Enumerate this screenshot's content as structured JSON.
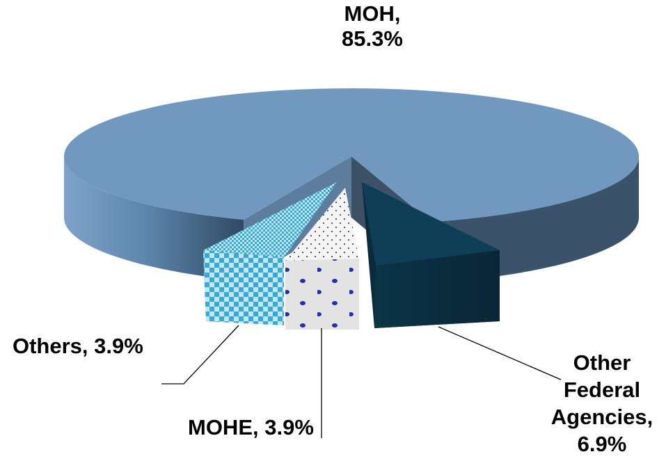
{
  "chart_data": {
    "type": "pie",
    "style": "3d-exploded",
    "title": "",
    "slices": [
      {
        "label": "MOH",
        "value": 85.3,
        "display": "MOH,\n85.3%",
        "color": "#7199c0",
        "pattern": "solid"
      },
      {
        "label": "Other Federal Agencies",
        "value": 6.9,
        "display": "Other\nFederal\nAgencies,\n6.9%",
        "color": "#0f3f57",
        "pattern": "solid"
      },
      {
        "label": "MOHE",
        "value": 3.9,
        "display": "MOHE, 3.9%",
        "color": "#e6e6e6",
        "pattern": "dotted"
      },
      {
        "label": "Others",
        "value": 3.9,
        "display": "Others, 3.9%",
        "color": "#48b4e0",
        "pattern": "checkered"
      }
    ]
  }
}
